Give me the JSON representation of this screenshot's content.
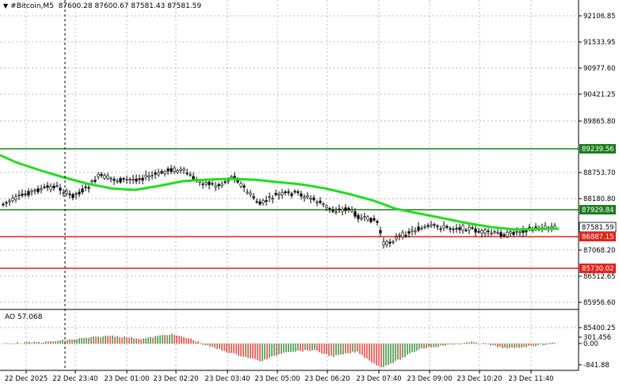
{
  "window": {
    "symbol": "#Bitcoin,M5",
    "ohlc": "87600.28 87600.67 87581.43 87581.59",
    "dropdown_icon": "triangle-down-icon"
  },
  "price_axis": {
    "ticks": [
      "92106.85",
      "91533.95",
      "90977.60",
      "90421.25",
      "89865.80",
      "88753.70",
      "88180.80",
      "87068.20",
      "86512.65",
      "85956.60",
      "85400.25"
    ]
  },
  "levels": [
    {
      "label": "89239.56",
      "color": "#1e7d1e"
    },
    {
      "label": "87929.84",
      "color": "#1e7d1e"
    },
    {
      "label": "87581.59",
      "color": "#000000",
      "kind": "current"
    },
    {
      "label": "86887.15",
      "color": "#e8211a"
    },
    {
      "label": "85730.02",
      "color": "#e8211a"
    }
  ],
  "time_axis": {
    "labels": [
      "22 Dec 2025",
      "22 Dec 23:40",
      "23 Dec 01:00",
      "23 Dec 02:20",
      "23 Dec 03:40",
      "23 Dec 05:00",
      "23 Dec 06:20",
      "23 Dec 07:40",
      "23 Dec 09:00",
      "23 Dec 10:20",
      "23 Dec 11:40"
    ]
  },
  "oscillator": {
    "label": "AO 57.068",
    "ticks": [
      "301.456",
      "0.00",
      "-841.88"
    ]
  },
  "colors": {
    "up": "#1e7d1e",
    "down": "#e8211a",
    "ma": "#22dd22"
  }
}
